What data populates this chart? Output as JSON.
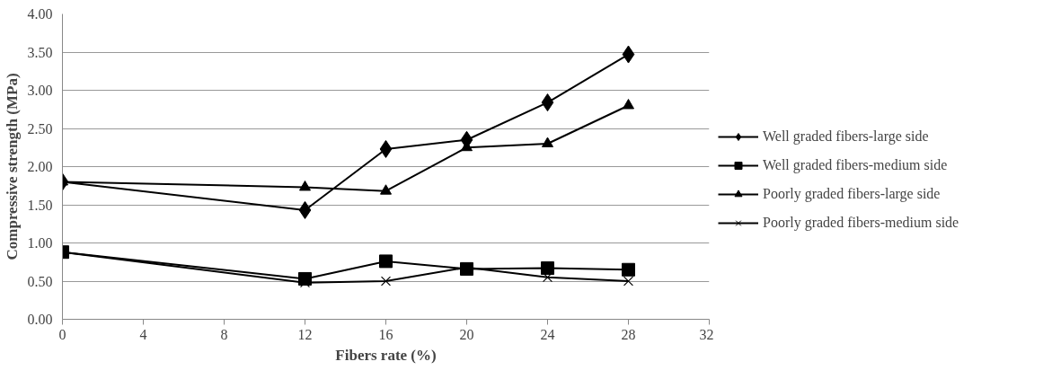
{
  "chart_data": {
    "type": "line",
    "xlabel": "Fibers rate (%)",
    "ylabel": "Compressive strength (MPa)",
    "x": [
      0,
      12,
      16,
      20,
      24,
      28
    ],
    "series": [
      {
        "name": "Well graded fibers-large side",
        "color": "#000000",
        "marker": "diamond",
        "values": [
          1.8,
          1.43,
          2.23,
          2.35,
          2.84,
          3.47
        ]
      },
      {
        "name": "Well graded fibers-medium side",
        "color": "#000000",
        "marker": "square",
        "values": [
          0.88,
          0.53,
          0.76,
          0.66,
          0.67,
          0.65
        ]
      },
      {
        "name": "Poorly graded fibers-large side",
        "color": "#000000",
        "marker": "triangle",
        "values": [
          1.8,
          1.73,
          1.68,
          2.25,
          2.3,
          2.8
        ]
      },
      {
        "name": "Poorly graded fibers-medium side",
        "color": "#000000",
        "marker": "cross",
        "values": [
          0.88,
          0.48,
          0.5,
          0.68,
          0.55,
          0.5
        ]
      }
    ],
    "xlim": [
      0,
      32
    ],
    "xticks": [
      0,
      4,
      8,
      12,
      16,
      20,
      24,
      28,
      32
    ],
    "ylim": [
      0,
      4
    ],
    "yticks": [
      {
        "value": 0,
        "label": "0.00"
      },
      {
        "value": 0.5,
        "label": "0.50"
      },
      {
        "value": 1,
        "label": "1.00"
      },
      {
        "value": 1.5,
        "label": "1.50"
      },
      {
        "value": 2,
        "label": "2.00"
      },
      {
        "value": 2.5,
        "label": "2.50"
      },
      {
        "value": 3,
        "label": "3.00"
      },
      {
        "value": 3.5,
        "label": "3.50"
      },
      {
        "value": 4,
        "label": "4.00"
      }
    ],
    "grid": "y",
    "legend": "right",
    "line_style": "solid"
  }
}
